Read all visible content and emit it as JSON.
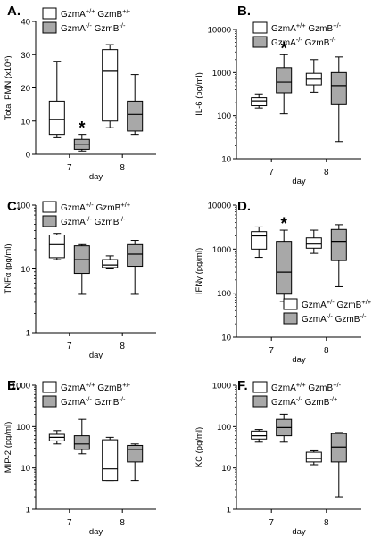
{
  "colors": {
    "wt_fill": "#ffffff",
    "ko_fill": "#a8a8a8",
    "stroke": "#000000"
  },
  "chart_data": [
    {
      "panel": "A.",
      "type": "box",
      "scale": "linear",
      "ylabel": "Total PMN (x10⁴)",
      "xlabel": "day",
      "ylim": [
        0,
        40
      ],
      "yticks": [
        "0",
        "10",
        "20",
        "30",
        "40"
      ],
      "categories": [
        "7",
        "8"
      ],
      "legend": [
        {
          "label": "GzmA+/+ GzmB+/-",
          "series": "wt"
        },
        {
          "label": "GzmA-/- GzmB-/-",
          "series": "ko"
        }
      ],
      "series": [
        {
          "name": "GzmA+/+ GzmB+/-",
          "key": "wt",
          "boxes": [
            [
              5,
              6,
              10.5,
              16,
              28
            ],
            [
              8,
              10,
              25,
              31.5,
              33
            ]
          ]
        },
        {
          "name": "GzmA-/- GzmB-/-",
          "key": "ko",
          "boxes": [
            [
              1,
              1.5,
              3,
              4.5,
              6
            ],
            [
              6,
              7,
              12,
              16,
              24
            ]
          ]
        }
      ],
      "annotations": [
        {
          "text": "*",
          "category": 0,
          "series": 1,
          "y": 6
        }
      ]
    },
    {
      "panel": "B.",
      "type": "box",
      "scale": "log",
      "ylabel": "IL-6 (pg/ml)",
      "xlabel": "day",
      "ylim": [
        10,
        10000
      ],
      "yticks": [
        "10",
        "100",
        "1000",
        "10000"
      ],
      "categories": [
        "7",
        "8"
      ],
      "legend": [
        {
          "label": "GzmA+/+ GzmB+/-",
          "series": "wt"
        },
        {
          "label": "GzmA-/- GzmB-/-",
          "series": "ko"
        }
      ],
      "series": [
        {
          "name": "GzmA+/+ GzmB+/-",
          "key": "wt",
          "boxes": [
            [
              150,
              170,
              220,
              260,
              320
            ],
            [
              350,
              520,
              700,
              960,
              2000
            ]
          ]
        },
        {
          "name": "GzmA-/- GzmB-/-",
          "key": "ko",
          "boxes": [
            [
              110,
              340,
              600,
              1300,
              2600
            ],
            [
              25,
              180,
              500,
              1000,
              2300
            ]
          ]
        }
      ],
      "annotations": [
        {
          "text": "*",
          "category": 0,
          "series": 1,
          "y": 2600
        }
      ]
    },
    {
      "panel": "C.",
      "type": "box",
      "scale": "log",
      "ylabel": "TNFα (pg/ml)",
      "xlabel": "day",
      "ylim": [
        1,
        100
      ],
      "yticks": [
        "1",
        "10",
        "100"
      ],
      "categories": [
        "7",
        "8"
      ],
      "legend": [
        {
          "label": "GzmA+/- GzmB+/+",
          "series": "wt"
        },
        {
          "label": "GzmA-/- GzmB-/-",
          "series": "ko"
        }
      ],
      "series": [
        {
          "name": "GzmA+/- GzmB+/+",
          "key": "wt",
          "boxes": [
            [
              14,
              15,
              24,
              34,
              36
            ],
            [
              10,
              10.5,
              11.5,
              14,
              16
            ]
          ]
        },
        {
          "name": "GzmA-/- GzmB-/-",
          "key": "ko",
          "boxes": [
            [
              4,
              8.5,
              14,
              23,
              24
            ],
            [
              4,
              11,
              17,
              24,
              28
            ]
          ]
        }
      ],
      "annotations": []
    },
    {
      "panel": "D.",
      "type": "box",
      "scale": "log",
      "ylabel": "IFNγ (pg/ml)",
      "xlabel": "day",
      "ylim": [
        10,
        10000
      ],
      "yticks": [
        "10",
        "100",
        "1000",
        "10000"
      ],
      "categories": [
        "7",
        "8"
      ],
      "legend": [
        {
          "label": "GzmA+/- GzmB+/+",
          "series": "wt"
        },
        {
          "label": "GzmA-/- GzmB-/-",
          "series": "ko"
        }
      ],
      "series": [
        {
          "name": "GzmA+/- GzmB+/+",
          "key": "wt",
          "boxes": [
            [
              650,
              1000,
              2000,
              2500,
              3200
            ],
            [
              800,
              1050,
              1300,
              1800,
              2700
            ]
          ]
        },
        {
          "name": "GzmA-/- GzmB-/-",
          "key": "ko",
          "boxes": [
            [
              65,
              95,
              300,
              1500,
              2700
            ],
            [
              140,
              550,
              1500,
              2800,
              3600
            ]
          ]
        }
      ],
      "annotations": [
        {
          "text": "*",
          "category": 0,
          "series": 1,
          "y": 2700
        }
      ]
    },
    {
      "panel": "E.",
      "type": "box",
      "scale": "log",
      "ylabel": "MIP-2 (pg/ml)",
      "xlabel": "day",
      "ylim": [
        1,
        1000
      ],
      "yticks": [
        "1",
        "10",
        "100",
        "1000"
      ],
      "categories": [
        "7",
        "8"
      ],
      "legend": [
        {
          "label": "GzmA+/+ GzmB+/-",
          "series": "wt"
        },
        {
          "label": "GzmA-/- GzmB-/-",
          "series": "ko"
        }
      ],
      "series": [
        {
          "name": "GzmA+/+ GzmB+/-",
          "key": "wt",
          "boxes": [
            [
              38,
              45,
              55,
              65,
              80
            ],
            [
              5,
              5,
              9.5,
              48,
              55
            ]
          ]
        },
        {
          "name": "GzmA-/- GzmB-/-",
          "key": "ko",
          "boxes": [
            [
              22,
              28,
              38,
              60,
              150
            ],
            [
              5,
              14,
              28,
              35,
              38
            ]
          ]
        }
      ],
      "annotations": []
    },
    {
      "panel": "F.",
      "type": "box",
      "scale": "log",
      "ylabel": "KC (pg/ml)",
      "xlabel": "day",
      "ylim": [
        1,
        1000
      ],
      "yticks": [
        "1",
        "10",
        "100",
        "1000"
      ],
      "categories": [
        "7",
        "8"
      ],
      "legend": [
        {
          "label": "GzmA+/+ GzmB+/-",
          "series": "wt"
        },
        {
          "label": "GzmA-/- GzmB-/+",
          "series": "ko"
        }
      ],
      "series": [
        {
          "name": "GzmA+/+ GzmB+/-",
          "key": "wt",
          "boxes": [
            [
              42,
              50,
              60,
              78,
              85
            ],
            [
              12,
              14,
              17,
              24,
              26
            ]
          ]
        },
        {
          "name": "GzmA-/- GzmB-/+",
          "key": "ko",
          "boxes": [
            [
              42,
              60,
              95,
              150,
              200
            ],
            [
              2,
              14,
              32,
              68,
              72
            ]
          ]
        }
      ],
      "annotations": []
    }
  ]
}
